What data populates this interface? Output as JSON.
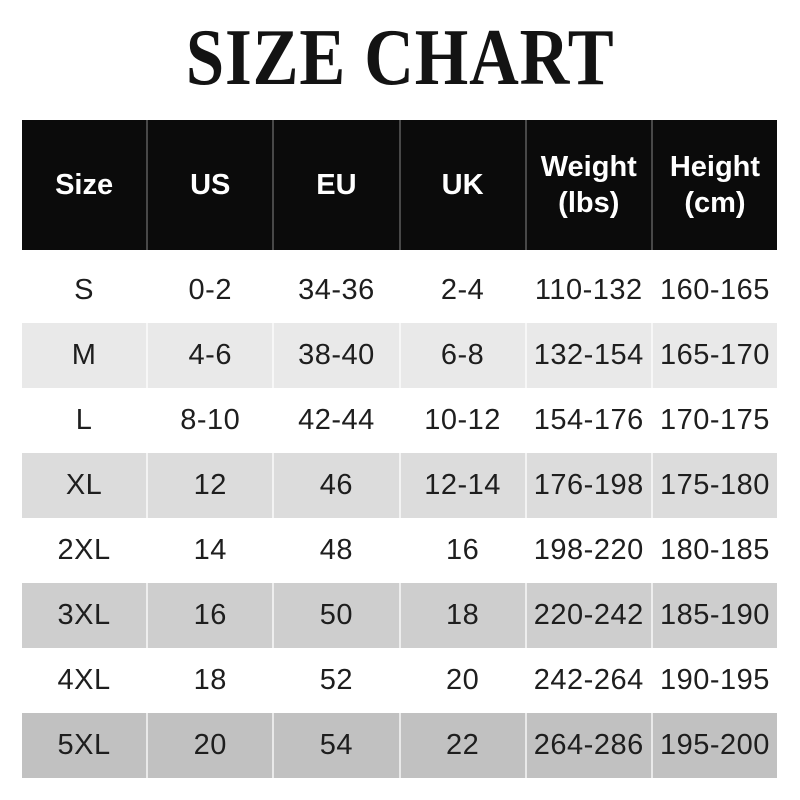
{
  "title": "SIZE CHART",
  "colors": {
    "page_bg": "#ffffff",
    "title_text": "#131313",
    "header_bg": "#0b0b0b",
    "header_text": "#ffffff",
    "header_divider": "#484848",
    "body_text": "#1e1e1e",
    "row_divider": "rgba(255,255,255,0.65)",
    "stripe_row_2": "#e9e9e9",
    "stripe_row_4": "#dcdcdc",
    "stripe_row_6": "#cecece",
    "stripe_row_8": "#c1c1c1"
  },
  "table": {
    "columns": [
      "Size",
      "US",
      "EU",
      "UK",
      "Weight (lbs)",
      "Height (cm)"
    ],
    "rows": [
      {
        "cells": [
          "S",
          "0-2",
          "34-36",
          "2-4",
          "110-132",
          "160-165"
        ],
        "bg": "#ffffff"
      },
      {
        "cells": [
          "M",
          "4-6",
          "38-40",
          "6-8",
          "132-154",
          "165-170"
        ],
        "bg": "#e9e9e9"
      },
      {
        "cells": [
          "L",
          "8-10",
          "42-44",
          "10-12",
          "154-176",
          "170-175"
        ],
        "bg": "#ffffff"
      },
      {
        "cells": [
          "XL",
          "12",
          "46",
          "12-14",
          "176-198",
          "175-180"
        ],
        "bg": "#dcdcdc"
      },
      {
        "cells": [
          "2XL",
          "14",
          "48",
          "16",
          "198-220",
          "180-185"
        ],
        "bg": "#ffffff"
      },
      {
        "cells": [
          "3XL",
          "16",
          "50",
          "18",
          "220-242",
          "185-190"
        ],
        "bg": "#cecece"
      },
      {
        "cells": [
          "4XL",
          "18",
          "52",
          "20",
          "242-264",
          "190-195"
        ],
        "bg": "#ffffff"
      },
      {
        "cells": [
          "5XL",
          "20",
          "54",
          "22",
          "264-286",
          "195-200"
        ],
        "bg": "#c1c1c1"
      }
    ]
  },
  "chart_data": {
    "type": "table",
    "title": "SIZE CHART",
    "columns": [
      "Size",
      "US",
      "EU",
      "UK",
      "Weight (lbs)",
      "Height (cm)"
    ],
    "rows": [
      [
        "S",
        "0-2",
        "34-36",
        "2-4",
        "110-132",
        "160-165"
      ],
      [
        "M",
        "4-6",
        "38-40",
        "6-8",
        "132-154",
        "165-170"
      ],
      [
        "L",
        "8-10",
        "42-44",
        "10-12",
        "154-176",
        "170-175"
      ],
      [
        "XL",
        "12",
        "46",
        "12-14",
        "176-198",
        "175-180"
      ],
      [
        "2XL",
        "14",
        "48",
        "16",
        "198-220",
        "180-185"
      ],
      [
        "3XL",
        "16",
        "50",
        "18",
        "220-242",
        "185-190"
      ],
      [
        "4XL",
        "18",
        "52",
        "20",
        "242-264",
        "190-195"
      ],
      [
        "5XL",
        "20",
        "54",
        "22",
        "264-286",
        "195-200"
      ]
    ],
    "legend": "none",
    "notes": "Alternating rows shaded gray, progressively darker toward bottom"
  }
}
